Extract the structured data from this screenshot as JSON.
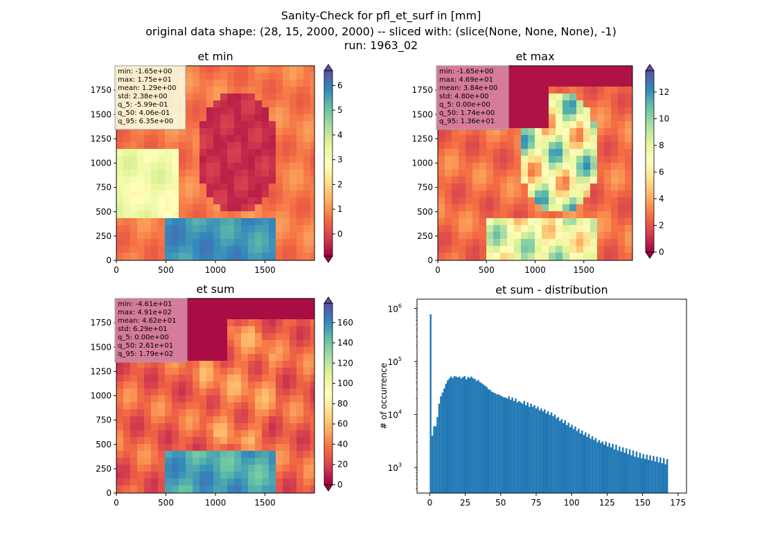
{
  "figure": {
    "title_lines": [
      "Sanity-Check for pfl_et_surf in [mm]",
      "original data shape: (28, 15, 2000, 2000) -- sliced with: (slice(None, None, None), -1)",
      "run: 1963_02"
    ]
  },
  "colors": {
    "histogram_bar": "#1f77b4",
    "stats_box_min": "#fbf9dd",
    "stats_box_max": "#d987a4",
    "stats_box_sum": "#d987a4"
  },
  "chart_data": [
    {
      "type": "heatmap",
      "title": "et min",
      "colormap": "Spectral",
      "xticks": [
        0,
        500,
        1000,
        1500
      ],
      "yticks": [
        0,
        250,
        500,
        750,
        1000,
        1250,
        1500,
        1750
      ],
      "xlim": [
        0,
        2000
      ],
      "ylim": [
        0,
        2000
      ],
      "colorbar": {
        "range": [
          -0.9,
          6.6
        ],
        "ticks": [
          0,
          1,
          2,
          3,
          4,
          5,
          6
        ],
        "extend": "both"
      },
      "stats": [
        "min: -1.65e+00",
        "max: 1.75e+01",
        "mean: 1.29e+00",
        "std: 2.38e+00",
        "q_5: -5.99e-01",
        "q_50: 4.06e-01",
        "q_95: 6.35e+00"
      ]
    },
    {
      "type": "heatmap",
      "title": "et max",
      "colormap": "Spectral",
      "xticks": [
        0,
        500,
        1000,
        1500
      ],
      "yticks": [
        0,
        250,
        500,
        750,
        1000,
        1250,
        1500,
        1750
      ],
      "xlim": [
        0,
        2000
      ],
      "ylim": [
        0,
        2000
      ],
      "colorbar": {
        "range": [
          0,
          13.6
        ],
        "ticks": [
          0,
          2,
          4,
          6,
          8,
          10,
          12
        ],
        "extend": "both"
      },
      "stats": [
        "min: -1.65e+00",
        "max: 4.69e+01",
        "mean: 3.84e+00",
        "std: 4.80e+00",
        "q_5: 0.00e+00",
        "q_50: 1.74e+00",
        "q_95: 1.36e+01"
      ]
    },
    {
      "type": "heatmap",
      "title": "et sum",
      "colormap": "Spectral",
      "xticks": [
        0,
        500,
        1000,
        1500
      ],
      "yticks": [
        0,
        250,
        500,
        750,
        1000,
        1250,
        1500,
        1750
      ],
      "xlim": [
        0,
        2000
      ],
      "ylim": [
        0,
        2000
      ],
      "colorbar": {
        "range": [
          0,
          179
        ],
        "ticks": [
          0,
          20,
          40,
          60,
          80,
          100,
          120,
          140,
          160
        ],
        "extend": "both"
      },
      "stats": [
        "min: -4.61e+01",
        "max: 4.91e+02",
        "mean: 4.62e+01",
        "std: 6.29e+01",
        "q_5: 0.00e+00",
        "q_50: 2.61e+01",
        "q_95: 1.79e+02"
      ]
    },
    {
      "type": "bar",
      "title": "et sum - distribution",
      "ylabel": "# of occurrence",
      "xlabel": "",
      "yscale": "log",
      "xlim": [
        -9,
        181
      ],
      "ylim": [
        330,
        1500000
      ],
      "xticks": [
        0,
        25,
        50,
        75,
        100,
        125,
        150,
        175
      ],
      "yticks": [
        1000,
        10000,
        100000,
        1000000
      ],
      "ytick_labels": [
        [
          "10",
          "3"
        ],
        [
          "10",
          "4"
        ],
        [
          "10",
          "5"
        ],
        [
          "10",
          "6"
        ]
      ],
      "bin_start": 0,
      "bin_width": 1.2,
      "counts": [
        780000,
        4000,
        6000,
        6000,
        9000,
        16000,
        22000,
        26000,
        31000,
        38000,
        44000,
        48000,
        52000,
        49000,
        53000,
        52000,
        50000,
        52000,
        48000,
        51000,
        53000,
        46000,
        51000,
        49000,
        52000,
        48000,
        47000,
        43000,
        45000,
        41000,
        39000,
        37000,
        35000,
        33000,
        30000,
        29000,
        27000,
        26000,
        25000,
        24000,
        24000,
        23000,
        22000,
        21000,
        21000,
        20000,
        22000,
        19000,
        21000,
        18000,
        20000,
        17000,
        18000,
        17000,
        16000,
        18000,
        15000,
        17000,
        14000,
        16000,
        14000,
        15000,
        13000,
        14000,
        12000,
        13000,
        11500,
        12500,
        10500,
        11500,
        9800,
        11000,
        9300,
        10000,
        8400,
        9000,
        7600,
        8200,
        6900,
        7800,
        6300,
        7000,
        5800,
        6400,
        5300,
        5900,
        4900,
        5400,
        4400,
        5000,
        4100,
        4600,
        3800,
        4300,
        3500,
        3900,
        3300,
        3600,
        3000,
        3300,
        2900,
        3100,
        2700,
        3100,
        2500,
        2900,
        2400,
        2800,
        2200,
        2700,
        2100,
        2500,
        2000,
        2400,
        1900,
        2300,
        1800,
        2200,
        1700,
        2100,
        1600,
        2000,
        1550,
        1900,
        1500,
        1800,
        1450,
        1750,
        1400,
        1700,
        1350,
        1650,
        1300,
        1600,
        1250,
        1550,
        1200,
        1500,
        1150,
        1450
      ]
    }
  ]
}
